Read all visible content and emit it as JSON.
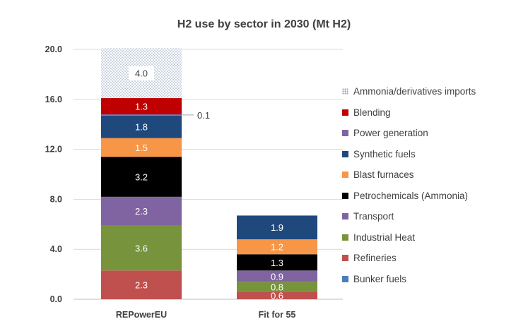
{
  "chart_data": {
    "type": "bar",
    "stacked": true,
    "title": "H2 use by sector in 2030 (Mt H2)",
    "categories": [
      "REPowerEU",
      "Fit for 55"
    ],
    "ylim": [
      0,
      20
    ],
    "yticks": [
      "0.0",
      "4.0",
      "8.0",
      "12.0",
      "16.0",
      "20.0"
    ],
    "ytick_values": [
      0,
      4,
      8,
      12,
      16,
      20
    ],
    "grid": true,
    "legend_position": "right",
    "series": [
      {
        "name": "Bunker fuels",
        "color": "#4a7ebb",
        "values": [
          0,
          0
        ],
        "labels": [
          "",
          ""
        ]
      },
      {
        "name": "Refineries",
        "color": "#c0504d",
        "values": [
          2.3,
          0.6
        ],
        "labels": [
          "2.3",
          "0.6"
        ]
      },
      {
        "name": "Industrial Heat",
        "color": "#77933c",
        "values": [
          3.6,
          0.8
        ],
        "labels": [
          "3.6",
          "0.8"
        ]
      },
      {
        "name": "Transport",
        "color": "#8064a2",
        "values": [
          2.3,
          0.9
        ],
        "labels": [
          "2.3",
          "0.9"
        ]
      },
      {
        "name": "Petrochemicals (Ammonia)",
        "color": "#000000",
        "values": [
          3.2,
          1.3
        ],
        "labels": [
          "3.2",
          "1.3"
        ]
      },
      {
        "name": "Blast furnaces",
        "color": "#f79646",
        "values": [
          1.5,
          1.2
        ],
        "labels": [
          "1.5",
          "1.2"
        ]
      },
      {
        "name": "Synthetic fuels",
        "color": "#1f497d",
        "values": [
          1.8,
          1.9
        ],
        "labels": [
          "1.8",
          "1.9"
        ]
      },
      {
        "name": "Power generation",
        "color": "#8064a2",
        "values": [
          0.1,
          0
        ],
        "labels": [
          "",
          ""
        ]
      },
      {
        "name": "Blending",
        "color": "#c00000",
        "values": [
          1.3,
          0
        ],
        "labels": [
          "1.3",
          ""
        ]
      },
      {
        "name": "Ammonia/derivatives imports",
        "color": "#8fa6be",
        "pattern": "dotted",
        "values": [
          4.0,
          0
        ],
        "labels": [
          "4.0",
          ""
        ]
      }
    ],
    "annotations": [
      {
        "text": "0.1",
        "series": "Power generation",
        "category": "REPowerEU"
      }
    ]
  },
  "legend_order": [
    "Ammonia/derivatives imports",
    "Blending",
    "Power generation",
    "Synthetic fuels",
    "Blast furnaces",
    "Petrochemicals (Ammonia)",
    "Transport",
    "Industrial Heat",
    "Refineries",
    "Bunker fuels"
  ]
}
